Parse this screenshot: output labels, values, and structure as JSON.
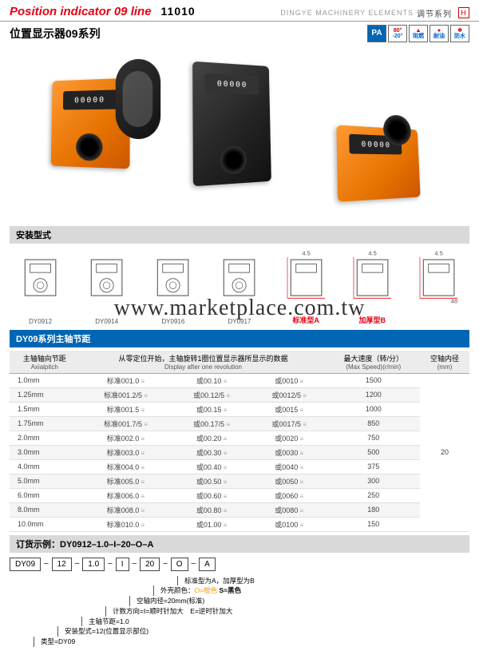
{
  "colors": {
    "accent": "#e60012",
    "blue": "#0066b3",
    "orange": "#ff8c1a",
    "gray_bg": "#d9d9d9"
  },
  "header": {
    "title_en": "Position indicator 09 line",
    "code": "11010",
    "brand": "DINGYE MACHINERY ELEMENTS",
    "series": "调节系列",
    "title_cn": "位置显示器09系列"
  },
  "badges": [
    {
      "type": "pa",
      "text": "PA"
    },
    {
      "type": "temp",
      "top": "80°",
      "bot": "-20°"
    },
    {
      "type": "icon",
      "top": "▲",
      "bot": "阻燃"
    },
    {
      "type": "icon",
      "top": "●",
      "bot": "耐油"
    },
    {
      "type": "icon",
      "top": "❄",
      "bot": "防水"
    }
  ],
  "product_display": "00000",
  "watermark": "www.marketplace.com.tw",
  "section_install": "安装型式",
  "drawings": [
    {
      "label": "DY0912"
    },
    {
      "label": "DY0914"
    },
    {
      "label": "DY0916"
    },
    {
      "label": "DY0917"
    },
    {
      "label": "标准型A",
      "red": true
    },
    {
      "label": "加厚型B",
      "red": true
    },
    {
      "label": ""
    }
  ],
  "section_table": "DY09系列主轴节距",
  "table": {
    "headers": [
      {
        "cn": "主轴轴向节距",
        "en": "Axialpitch"
      },
      {
        "cn": "从零定位开始，主轴旋转1圈位置显示器所显示的数据",
        "en": "Display after one revolution",
        "span": 3
      },
      {
        "cn": "最大速度（转/分）",
        "en": "(Max Speed)(r/min)"
      },
      {
        "cn": "空轴内径",
        "en": "(mm)"
      }
    ],
    "rows": [
      {
        "p": "1.0mm",
        "a": "标准001.0",
        "b": "或00.10",
        "c": "或0010",
        "s": "1500"
      },
      {
        "p": "1.25mm",
        "a": "标准001.2/5",
        "b": "或00.12/5",
        "c": "或0012/5",
        "s": "1200"
      },
      {
        "p": "1.5mm",
        "a": "标准001.5",
        "b": "或00.15",
        "c": "或0015",
        "s": "1000"
      },
      {
        "p": "1.75mm",
        "a": "标准001.7/5",
        "b": "或00.17/5",
        "c": "或0017/5",
        "s": "850"
      },
      {
        "p": "2.0mm",
        "a": "标准002.0",
        "b": "或00.20",
        "c": "或0020",
        "s": "750"
      },
      {
        "p": "3.0mm",
        "a": "标准003.0",
        "b": "或00.30",
        "c": "或0030",
        "s": "500"
      },
      {
        "p": "4.0mm",
        "a": "标准004.0",
        "b": "或00.40",
        "c": "或0040",
        "s": "375"
      },
      {
        "p": "5.0mm",
        "a": "标准005.0",
        "b": "或00.50",
        "c": "或0050",
        "s": "300"
      },
      {
        "p": "6.0mm",
        "a": "标准006.0",
        "b": "或00.60",
        "c": "或0060",
        "s": "250"
      },
      {
        "p": "8.0mm",
        "a": "标准008.0",
        "b": "或00.80",
        "c": "或0080",
        "s": "180"
      },
      {
        "p": "10.0mm",
        "a": "标准010.0",
        "b": "或01.00",
        "c": "或0100",
        "s": "150"
      }
    ],
    "bore": "20"
  },
  "section_order": "订货示例：DY0912–1.0–I–20–O–A",
  "order": {
    "codes": [
      "DY09",
      "12",
      "1.0",
      "I",
      "20",
      "O",
      "A"
    ],
    "notes": [
      "标准型为A，加厚型为B",
      "外壳颜色：O=橙色 S=黑色",
      "空轴内径=20mm(标准)",
      "计数方向=I=顺时针加大　E=逆时针加大",
      "主轴节距=1.0",
      "安装型式=12(位置显示部位)",
      "类型=DY09"
    ]
  }
}
